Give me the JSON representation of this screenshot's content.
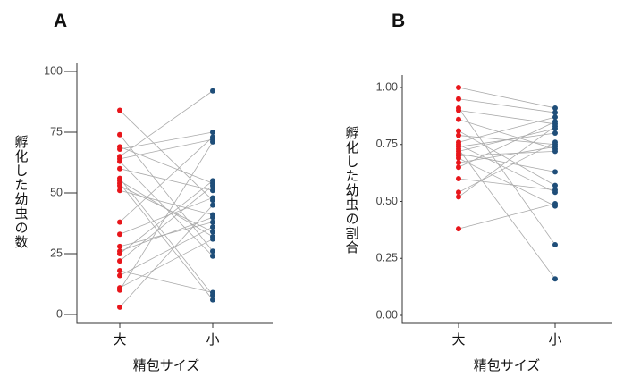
{
  "colors": {
    "large": "#e8161b",
    "small": "#1f4e79",
    "line": "#aaaaaa"
  },
  "chart_data": [
    {
      "type": "scatter",
      "panel": "A",
      "title": "",
      "xlabel": "精包サイズ",
      "ylabel": "孵化した幼虫の数",
      "categories": [
        "大",
        "小"
      ],
      "ylim": [
        0,
        100
      ],
      "yticks": [
        "0",
        "25",
        "50",
        "75",
        "100"
      ],
      "pairs": [
        [
          84,
          47
        ],
        [
          74,
          26
        ],
        [
          69,
          54
        ],
        [
          68,
          75
        ],
        [
          65,
          92
        ],
        [
          64,
          72
        ],
        [
          63,
          24
        ],
        [
          60,
          51
        ],
        [
          56,
          8
        ],
        [
          55,
          32
        ],
        [
          54,
          6
        ],
        [
          53,
          34
        ],
        [
          51,
          41
        ],
        [
          38,
          73
        ],
        [
          33,
          48
        ],
        [
          28,
          38
        ],
        [
          26,
          40
        ],
        [
          25,
          55
        ],
        [
          22,
          53
        ],
        [
          18,
          9
        ],
        [
          16,
          36
        ],
        [
          11,
          31
        ],
        [
          10,
          71
        ],
        [
          3,
          45
        ]
      ]
    },
    {
      "type": "scatter",
      "panel": "B",
      "title": "",
      "xlabel": "精包サイズ",
      "ylabel": "孵化した幼虫の割合",
      "categories": [
        "大",
        "小"
      ],
      "ylim": [
        0.0,
        1.0
      ],
      "yticks": [
        "0.00",
        "0.25",
        "0.50",
        "0.75",
        "1.00"
      ],
      "pairs": [
        [
          1.0,
          0.91
        ],
        [
          0.95,
          0.89
        ],
        [
          0.91,
          0.31
        ],
        [
          0.9,
          0.84
        ],
        [
          0.86,
          0.73
        ],
        [
          0.81,
          0.57
        ],
        [
          0.79,
          0.75
        ],
        [
          0.76,
          0.87
        ],
        [
          0.75,
          0.54
        ],
        [
          0.74,
          0.8
        ],
        [
          0.73,
          0.16
        ],
        [
          0.72,
          0.82
        ],
        [
          0.71,
          0.63
        ],
        [
          0.7,
          0.72
        ],
        [
          0.69,
          0.48
        ],
        [
          0.67,
          0.74
        ],
        [
          0.65,
          0.85
        ],
        [
          0.6,
          0.55
        ],
        [
          0.54,
          0.76
        ],
        [
          0.52,
          0.83
        ],
        [
          0.38,
          0.49
        ]
      ]
    }
  ]
}
